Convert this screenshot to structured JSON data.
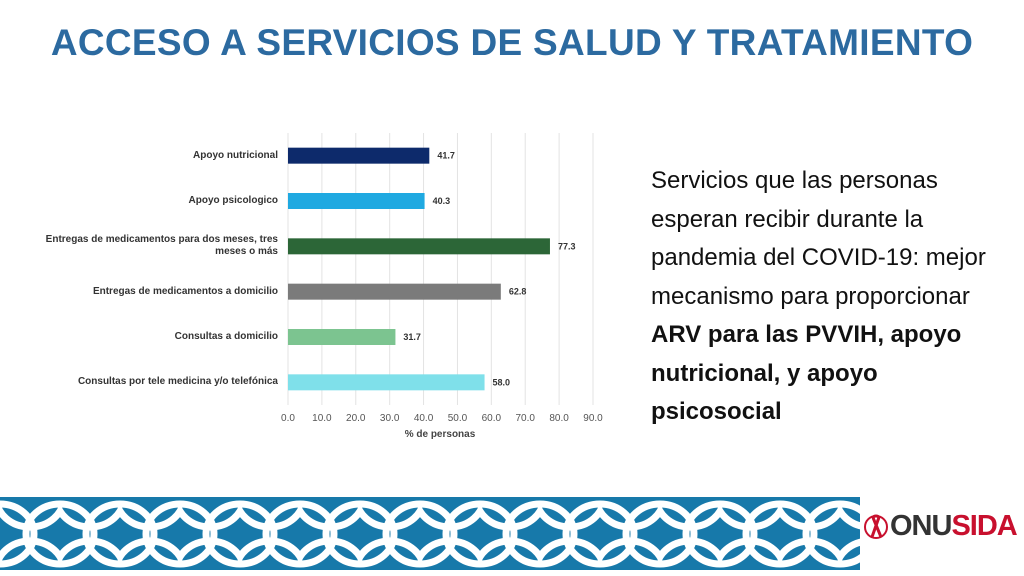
{
  "slide": {
    "title": "ACCESO A SERVICIOS DE SALUD Y TRATAMIENTO",
    "text": "Servicios que las personas esperan recibir durante la pandemia del COVID-19: mejor mecanismo para proporcionar",
    "emphasis": "ARV para las PVVIH, apoyo nutricional, y apoyo psicosocial",
    "logo_parts": [
      "ONU",
      "SIDA"
    ]
  },
  "chart_data": {
    "type": "barh",
    "categories": [
      "Apoyo nutricional",
      "Apoyo psicologico",
      "Entregas de medicamentos para dos meses, tres meses o más",
      "Entregas de medicamentos a domicilio",
      "Consultas a domicilio",
      "Consultas por tele medicina y/o telefónica"
    ],
    "values": [
      41.7,
      40.3,
      77.3,
      62.8,
      31.7,
      58.0
    ],
    "value_labels": [
      "41.7",
      "40.3",
      "77.3",
      "62.8",
      "31.7",
      "58.0"
    ],
    "colors": [
      "#0d2a6b",
      "#1fa9e1",
      "#2c6637",
      "#7b7b7b",
      "#7cc490",
      "#7fe0ea"
    ],
    "xlabel": "% de personas",
    "xlim": [
      0,
      90
    ],
    "xticks": [
      {
        "value": 0,
        "label": "0.0"
      },
      {
        "value": 10,
        "label": "10.0"
      },
      {
        "value": 20,
        "label": "20.0"
      },
      {
        "value": 30,
        "label": "30.0"
      },
      {
        "value": 40,
        "label": "40.0"
      },
      {
        "value": 50,
        "label": "50.0"
      },
      {
        "value": 60,
        "label": "60.0"
      },
      {
        "value": 70,
        "label": "70.0"
      },
      {
        "value": 80,
        "label": "80.0"
      },
      {
        "value": 90,
        "label": "90.0"
      }
    ],
    "grid": true
  }
}
